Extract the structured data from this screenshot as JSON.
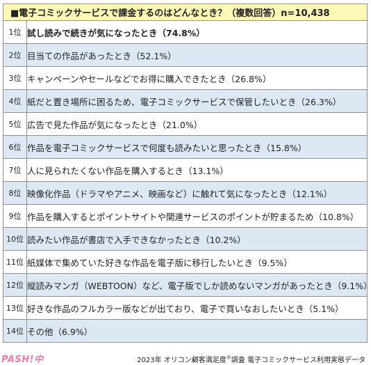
{
  "header": {
    "title": "■電子コミックサービスで課金するのはどんなとき？（複数回答）n=10,438"
  },
  "rows": [
    {
      "rank": "1位",
      "text": "試し読みで続きが気になったとき（74.8%）"
    },
    {
      "rank": "2位",
      "text": "目当ての作品があったとき（52.1%）"
    },
    {
      "rank": "3位",
      "text": "キャンペーンやセールなどでお得に購入できたとき（26.8%）"
    },
    {
      "rank": "4位",
      "text": "紙だと置き場所に困るため、電子コミックサービスで保管したいとき（26.3%）"
    },
    {
      "rank": "5位",
      "text": "広告で見た作品が気になったとき（21.0%）"
    },
    {
      "rank": "6位",
      "text": "作品を電子コミックサービスで何度も読みたいと思ったとき（15.8%）"
    },
    {
      "rank": "7位",
      "text": "人に見られたくない作品を購入するとき（13.1%）"
    },
    {
      "rank": "8位",
      "text": "映像化作品（ドラマやアニメ、映画など）に触れて気になったとき（12.1%）"
    },
    {
      "rank": "9位",
      "text": "作品を購入するとポイントサイトや関連サービスのポイントが貯まるため（10.8%）"
    },
    {
      "rank": "10位",
      "text": "読みたい作品が書店で入手できなかったとき（10.2%）"
    },
    {
      "rank": "11位",
      "text": "紙媒体で集めていた好きな作品を電子版に移行したいとき（9.5%）"
    },
    {
      "rank": "12位",
      "text": "縦読みマンガ（WEBTOON）など、電子版でしか読めないマンガがあったとき（9.1%）"
    },
    {
      "rank": "13位",
      "text": "好きな作品のフルカラー版などが出ており、電子で買いなおしたいとき（5.1%）"
    },
    {
      "rank": "14位",
      "text": "その他（6.9%）"
    }
  ],
  "footer": {
    "prefix": "2023年 オリコン顧客満足度",
    "registered_mark": "®",
    "suffix": "調査 電子コミックサービス利用実態データ"
  },
  "logo": {
    "text": "PASH!中"
  }
}
